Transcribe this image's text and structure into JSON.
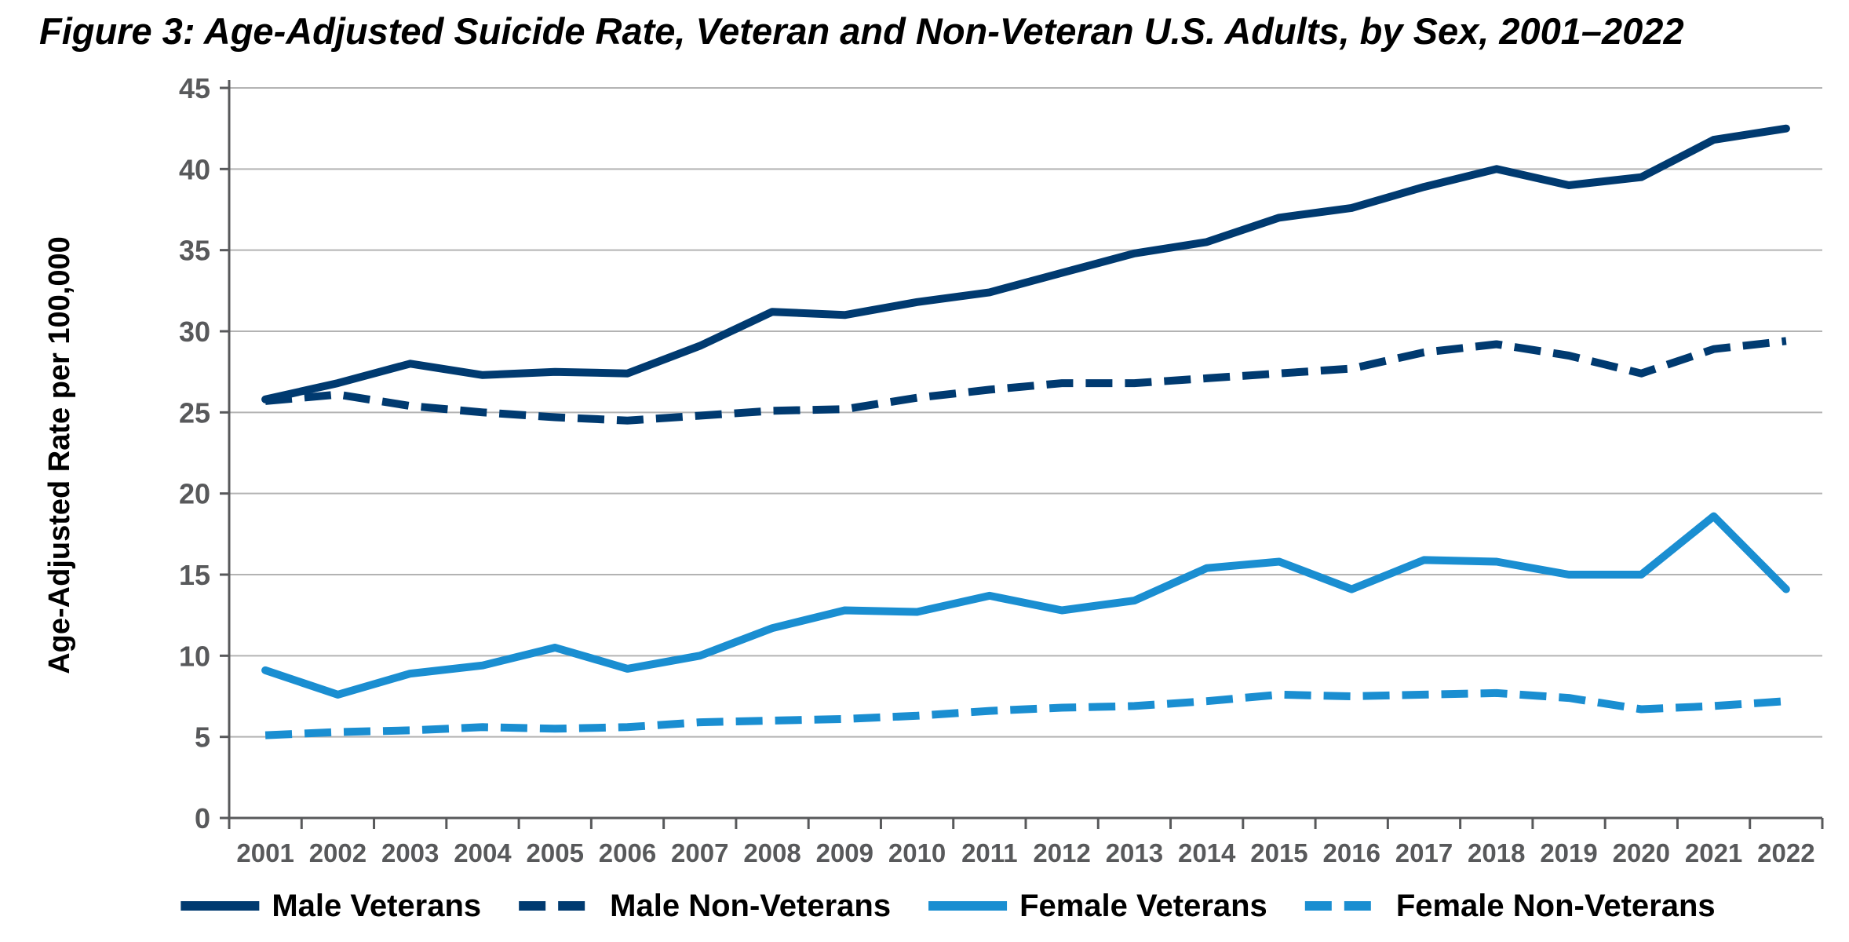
{
  "chart_data": {
    "type": "line",
    "title": "Figure 3: Age-Adjusted Suicide Rate, Veteran and Non-Veteran U.S. Adults, by Sex, 2001–2022",
    "xlabel": "",
    "ylabel": "Age-Adjusted Rate per 100,000",
    "ylim": [
      0,
      45
    ],
    "yticks": [
      "0",
      "5",
      "10",
      "15",
      "20",
      "25",
      "30",
      "35",
      "40",
      "45"
    ],
    "grid": true,
    "legend_position": "bottom",
    "categories": [
      "2001",
      "2002",
      "2003",
      "2004",
      "2005",
      "2006",
      "2007",
      "2008",
      "2009",
      "2010",
      "2011",
      "2012",
      "2013",
      "2014",
      "2015",
      "2016",
      "2017",
      "2018",
      "2019",
      "2020",
      "2021",
      "2022"
    ],
    "series": [
      {
        "name": "Male Veterans",
        "style": "solid",
        "color": "#003a70",
        "values": [
          25.8,
          26.8,
          28.0,
          27.3,
          27.5,
          27.4,
          29.1,
          31.2,
          31.0,
          31.8,
          32.4,
          33.6,
          34.8,
          35.5,
          37.0,
          37.6,
          38.9,
          40.0,
          39.0,
          39.5,
          41.8,
          42.5
        ]
      },
      {
        "name": "Male Non-Veterans",
        "style": "dashed",
        "color": "#003a70",
        "values": [
          25.7,
          26.1,
          25.4,
          25.0,
          24.7,
          24.5,
          24.8,
          25.1,
          25.2,
          25.9,
          26.4,
          26.8,
          26.8,
          27.1,
          27.4,
          27.7,
          28.7,
          29.2,
          28.5,
          27.4,
          28.9,
          29.4
        ]
      },
      {
        "name": "Female Veterans",
        "style": "solid",
        "color": "#1a8ed1",
        "values": [
          9.1,
          7.6,
          8.9,
          9.4,
          10.5,
          9.2,
          10.0,
          11.7,
          12.8,
          12.7,
          13.7,
          12.8,
          13.4,
          15.4,
          15.8,
          14.1,
          15.9,
          15.8,
          15.0,
          15.0,
          18.6,
          14.1
        ]
      },
      {
        "name": "Female Non-Veterans",
        "style": "dashed",
        "color": "#1a8ed1",
        "values": [
          5.1,
          5.3,
          5.4,
          5.6,
          5.5,
          5.6,
          5.9,
          6.0,
          6.1,
          6.3,
          6.6,
          6.8,
          6.9,
          7.2,
          7.6,
          7.5,
          7.6,
          7.7,
          7.4,
          6.7,
          6.9,
          7.2
        ]
      }
    ]
  }
}
